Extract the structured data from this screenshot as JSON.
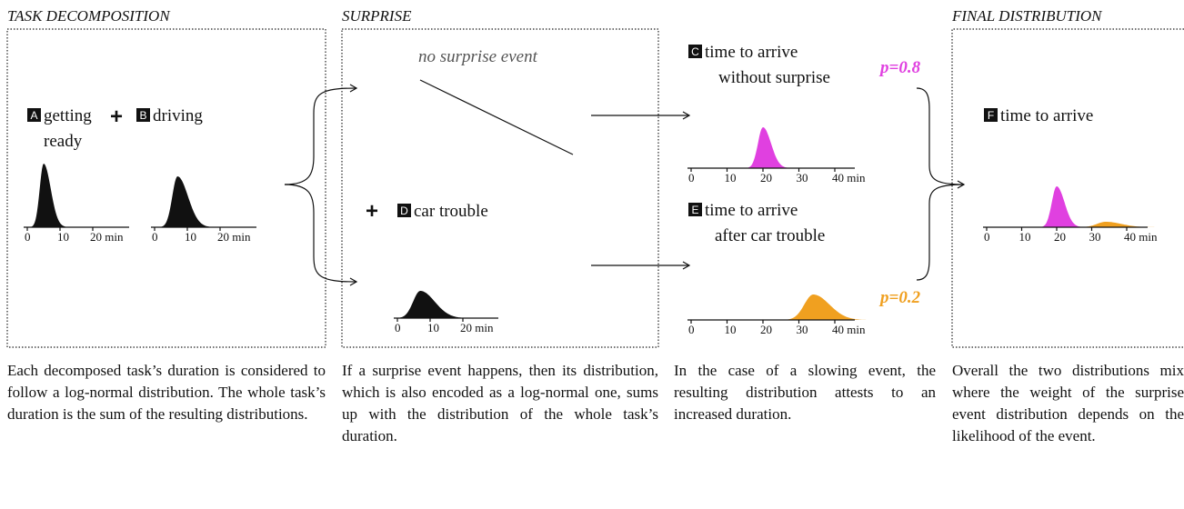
{
  "panel_titles": [
    "TASK DECOMPOSITION",
    "SURPRISE",
    "FINAL DISTRIBUTION"
  ],
  "operator": "+",
  "items": [
    {
      "badge": "A",
      "label": [
        "getting",
        "ready"
      ]
    },
    {
      "badge": "B",
      "label": [
        "driving"
      ]
    },
    {
      "badge": "C",
      "label": [
        "time to arrive",
        "without surprise"
      ]
    },
    {
      "badge": "D",
      "label": [
        "car trouble"
      ]
    },
    {
      "badge": "E",
      "label": [
        "time to arrive",
        "after car trouble"
      ]
    },
    {
      "badge": "F",
      "label": [
        "time to arrive"
      ]
    }
  ],
  "no_surprise": "no surprise event",
  "probabilities": [
    "p=0.8",
    "p=0.2"
  ],
  "axes": {
    "short": [
      "0",
      "10",
      "20 min"
    ],
    "long": [
      "0",
      "10",
      "20",
      "30",
      "40 min"
    ]
  },
  "captions": [
    "Each decomposed task’s duration is considered to follow a log-normal distribution. The whole task’s duration is the sum of the resulting distributions.",
    "If a surprise event happens, then its distribution, which is also encoded as a log-normal one, sums up with the distribution of the whole task’s duration.",
    "In the case of a slowing event, the resulting distribution attests to an increased duration.",
    "Overall the two distributions mix where the weight of the surprise event distribution depends on the likelihood of the event."
  ]
}
